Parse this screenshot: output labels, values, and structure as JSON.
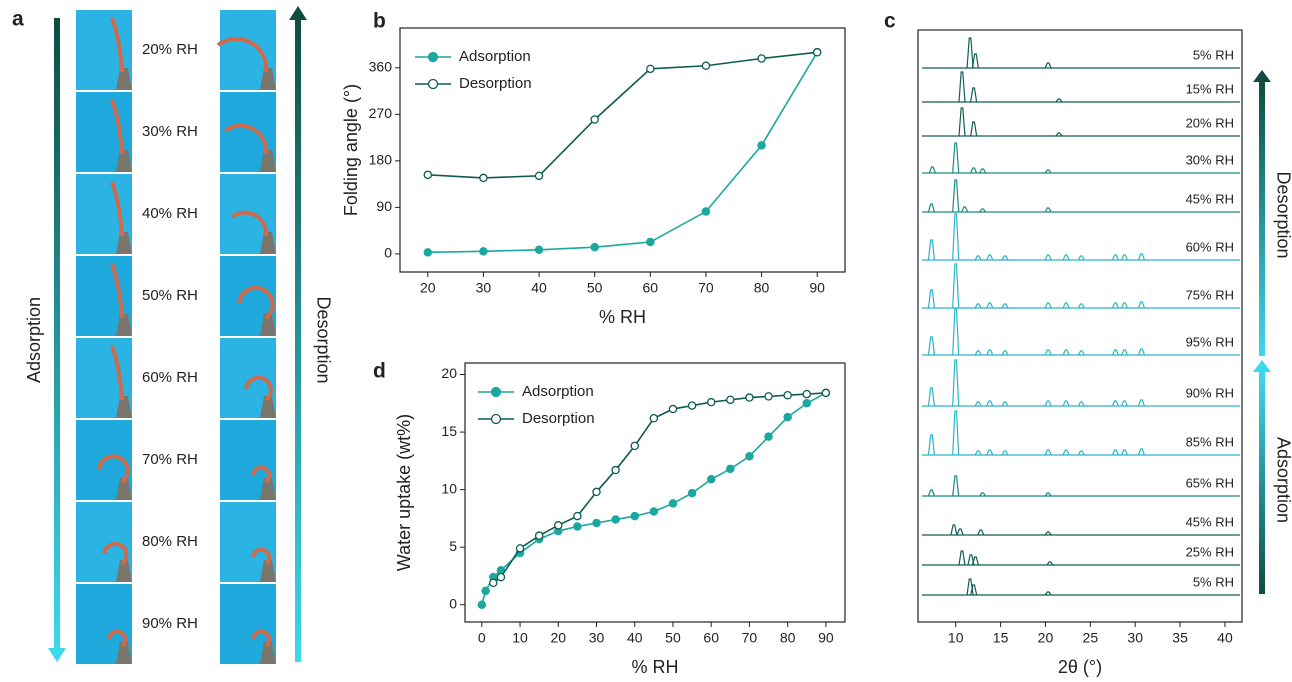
{
  "panel_a": {
    "panel_label": "a",
    "left_arrow_label": "Adsorption",
    "right_arrow_label": "Desorption",
    "rh_labels": [
      "20% RH",
      "30% RH",
      "40% RH",
      "50% RH",
      "60% RH",
      "70% RH",
      "80% RH",
      "90% RH"
    ]
  },
  "chart_data": [
    {
      "type": "line",
      "panel_label": "b",
      "xlabel": "% RH",
      "ylabel": "Folding angle (°)",
      "xlim": [
        15,
        95
      ],
      "xticks": [
        20,
        30,
        40,
        50,
        60,
        70,
        80,
        90
      ],
      "ylim": [
        -35,
        437
      ],
      "yticks": [
        0,
        90,
        180,
        270,
        360
      ],
      "legend": "upper left",
      "series": [
        {
          "name": "Adsorption",
          "color": "#1aa8a0",
          "marker": "filled",
          "x": [
            20,
            30,
            40,
            50,
            60,
            70,
            80,
            90
          ],
          "values": [
            3,
            5,
            8,
            13,
            23,
            82,
            210,
            390
          ]
        },
        {
          "name": "Desorption",
          "color": "#0e5c50",
          "marker": "open",
          "x": [
            20,
            30,
            40,
            50,
            60,
            70,
            80,
            90
          ],
          "values": [
            153,
            147,
            151,
            260,
            358,
            364,
            378,
            390
          ]
        }
      ]
    },
    {
      "type": "line",
      "panel_label": "d",
      "xlabel": "% RH",
      "ylabel": "Water uptake (wt%)",
      "xlim": [
        -4.4,
        95
      ],
      "xticks": [
        0,
        10,
        20,
        30,
        40,
        50,
        60,
        70,
        80,
        90
      ],
      "ylim": [
        -1.5,
        21
      ],
      "yticks": [
        0,
        5,
        10,
        15,
        20
      ],
      "legend": "upper left",
      "series": [
        {
          "name": "Adsorption",
          "color": "#1aa8a0",
          "marker": "filled",
          "x": [
            0,
            1,
            3,
            5,
            10,
            15,
            20,
            25,
            30,
            35,
            40,
            45,
            50,
            55,
            60,
            65,
            70,
            75,
            80,
            85,
            90
          ],
          "values": [
            0,
            1.2,
            2.4,
            3.0,
            4.5,
            5.7,
            6.4,
            6.8,
            7.1,
            7.4,
            7.7,
            8.1,
            8.8,
            9.7,
            10.9,
            11.8,
            12.9,
            14.6,
            16.3,
            17.5,
            18.4
          ]
        },
        {
          "name": "Desorption",
          "color": "#0e5c50",
          "marker": "open",
          "x": [
            3,
            5,
            10,
            15,
            20,
            25,
            30,
            35,
            40,
            45,
            50,
            55,
            60,
            65,
            70,
            75,
            80,
            85,
            90
          ],
          "values": [
            1.9,
            2.4,
            4.9,
            6.0,
            6.9,
            7.7,
            9.8,
            11.7,
            13.8,
            16.2,
            17.0,
            17.3,
            17.6,
            17.8,
            18.0,
            18.1,
            18.2,
            18.3,
            18.4
          ]
        }
      ]
    },
    {
      "type": "stacked-line",
      "panel_label": "c",
      "xlabel": "2θ (°)",
      "xlim": [
        5.8,
        41.9
      ],
      "xticks": [
        10,
        15,
        20,
        25,
        30,
        35,
        40
      ],
      "arrow_labels": [
        "Desorption",
        "Adsorption"
      ],
      "series": [
        {
          "name": "5% RH",
          "color": "#125e55",
          "peaks_x": [
            11.6,
            12.2,
            20.3
          ],
          "peaks_y": [
            30,
            14,
            5
          ]
        },
        {
          "name": "15% RH",
          "color": "#125e55",
          "peaks_x": [
            10.7,
            12.0,
            21.5
          ],
          "peaks_y": [
            30,
            14,
            3
          ]
        },
        {
          "name": "20% RH",
          "color": "#125e55",
          "peaks_x": [
            10.7,
            12.0,
            21.5
          ],
          "peaks_y": [
            28,
            14,
            3
          ]
        },
        {
          "name": "30% RH",
          "color": "#1d8a87",
          "peaks_x": [
            7.4,
            10.0,
            12.0,
            13.0,
            20.3
          ],
          "peaks_y": [
            6,
            30,
            5,
            4,
            3
          ]
        },
        {
          "name": "45% RH",
          "color": "#1d8a87",
          "peaks_x": [
            7.3,
            10.0,
            11.0,
            13.0,
            20.3
          ],
          "peaks_y": [
            8,
            32,
            5,
            3,
            4
          ]
        },
        {
          "name": "60% RH",
          "color": "#2bb5c8",
          "peaks_x": [
            7.3,
            10.0,
            12.5,
            13.8,
            15.5,
            20.3,
            22.3,
            24.0,
            27.8,
            28.8,
            30.7
          ],
          "peaks_y": [
            20,
            46,
            4,
            5,
            4,
            5,
            5,
            4,
            5,
            5,
            6
          ]
        },
        {
          "name": "75% RH",
          "color": "#2bb5c8",
          "peaks_x": [
            7.3,
            10.0,
            12.5,
            13.8,
            15.5,
            20.3,
            22.3,
            24.0,
            27.8,
            28.8,
            30.7
          ],
          "peaks_y": [
            18,
            44,
            4,
            5,
            4,
            5,
            5,
            4,
            5,
            5,
            6
          ]
        },
        {
          "name": "95% RH",
          "color": "#2bb5c8",
          "peaks_x": [
            7.3,
            10.0,
            12.5,
            13.8,
            15.5,
            20.3,
            22.3,
            24.0,
            27.8,
            28.8,
            30.7
          ],
          "peaks_y": [
            18,
            46,
            4,
            5,
            4,
            5,
            5,
            4,
            5,
            5,
            6
          ]
        },
        {
          "name": "90% RH",
          "color": "#2bb5c8",
          "peaks_x": [
            7.3,
            10.0,
            12.5,
            13.8,
            15.5,
            20.3,
            22.3,
            24.0,
            27.8,
            28.8,
            30.7
          ],
          "peaks_y": [
            18,
            46,
            4,
            5,
            4,
            5,
            5,
            4,
            5,
            5,
            6
          ]
        },
        {
          "name": "85% RH",
          "color": "#2bb5c8",
          "peaks_x": [
            7.3,
            10.0,
            12.5,
            13.8,
            15.5,
            20.3,
            22.3,
            24.0,
            27.8,
            28.8,
            30.7
          ],
          "peaks_y": [
            20,
            44,
            4,
            5,
            4,
            5,
            5,
            4,
            5,
            5,
            6
          ]
        },
        {
          "name": "65% RH",
          "color": "#1d8a87",
          "peaks_x": [
            7.3,
            10.0,
            13.0,
            20.3
          ],
          "peaks_y": [
            6,
            20,
            3,
            3
          ]
        },
        {
          "name": "45% RH",
          "color": "#125e55",
          "peaks_x": [
            9.8,
            10.5,
            12.8,
            20.3
          ],
          "peaks_y": [
            10,
            6,
            5,
            3
          ]
        },
        {
          "name": "25% RH",
          "color": "#125e55",
          "peaks_x": [
            10.7,
            11.7,
            12.2,
            20.5
          ],
          "peaks_y": [
            14,
            10,
            8,
            3
          ]
        },
        {
          "name": "5% RH",
          "color": "#125e55",
          "peaks_x": [
            11.6,
            12.0,
            20.3
          ],
          "peaks_y": [
            16,
            10,
            3
          ]
        }
      ]
    }
  ]
}
